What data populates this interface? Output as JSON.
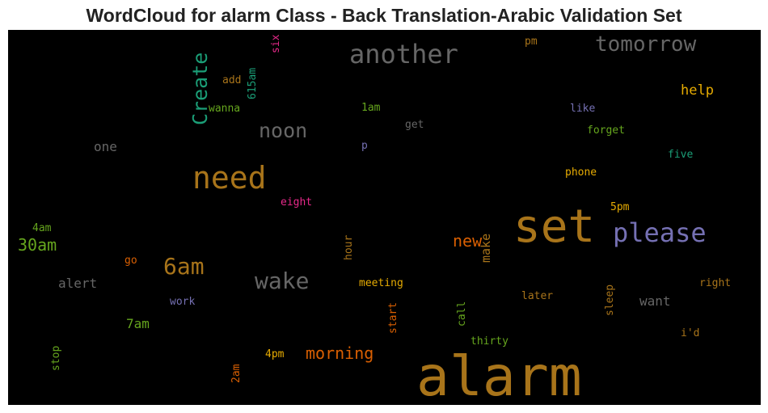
{
  "chart_data": {
    "type": "wordcloud",
    "title": "WordCloud for alarm Class - Back Translation-Arabic Validation Set",
    "background": "#000000",
    "words": [
      {
        "text": "alarm",
        "size": 68,
        "color": "#a8741a",
        "rotation": 0
      },
      {
        "text": "set",
        "size": 56,
        "color": "#a8741a",
        "rotation": 0
      },
      {
        "text": "need",
        "size": 38,
        "color": "#a8741a",
        "rotation": 0
      },
      {
        "text": "please",
        "size": 32,
        "color": "#7570b3",
        "rotation": 0
      },
      {
        "text": "another",
        "size": 32,
        "color": "#666666",
        "rotation": 0
      },
      {
        "text": "wake",
        "size": 28,
        "color": "#666666",
        "rotation": 0
      },
      {
        "text": "6am",
        "size": 28,
        "color": "#a8741a",
        "rotation": 0
      },
      {
        "text": "tomorrow",
        "size": 26,
        "color": "#666666",
        "rotation": 0
      },
      {
        "text": "Create",
        "size": 25,
        "color": "#1b9e77",
        "rotation": -90
      },
      {
        "text": "noon",
        "size": 25,
        "color": "#666666",
        "rotation": 0
      },
      {
        "text": "morning",
        "size": 20,
        "color": "#d95f02",
        "rotation": 0
      },
      {
        "text": "30am",
        "size": 20,
        "color": "#66a61e",
        "rotation": 0
      },
      {
        "text": "new",
        "size": 20,
        "color": "#d95f02",
        "rotation": 0
      },
      {
        "text": "help",
        "size": 17,
        "color": "#e6ab02",
        "rotation": 0
      },
      {
        "text": "want",
        "size": 16,
        "color": "#666666",
        "rotation": 0
      },
      {
        "text": "alert",
        "size": 16,
        "color": "#666666",
        "rotation": 0
      },
      {
        "text": "7am",
        "size": 16,
        "color": "#66a61e",
        "rotation": 0
      },
      {
        "text": "one",
        "size": 16,
        "color": "#666666",
        "rotation": 0
      },
      {
        "text": "make",
        "size": 15,
        "color": "#a8741a",
        "rotation": -90
      },
      {
        "text": "meeting",
        "size": 13,
        "color": "#e6ab02",
        "rotation": 0
      },
      {
        "text": "phone",
        "size": 13,
        "color": "#e6ab02",
        "rotation": 0
      },
      {
        "text": "5pm",
        "size": 13,
        "color": "#e6ab02",
        "rotation": 0
      },
      {
        "text": "4pm",
        "size": 13,
        "color": "#e6ab02",
        "rotation": 0
      },
      {
        "text": "later",
        "size": 13,
        "color": "#a8741a",
        "rotation": 0
      },
      {
        "text": "right",
        "size": 13,
        "color": "#a8741a",
        "rotation": 0
      },
      {
        "text": "i'd",
        "size": 13,
        "color": "#a8741a",
        "rotation": 0
      },
      {
        "text": "eight",
        "size": 13,
        "color": "#e7298a",
        "rotation": 0
      },
      {
        "text": "six",
        "size": 13,
        "color": "#e7298a",
        "rotation": -90
      },
      {
        "text": "forget",
        "size": 13,
        "color": "#66a61e",
        "rotation": 0
      },
      {
        "text": "five",
        "size": 13,
        "color": "#1b9e77",
        "rotation": 0
      },
      {
        "text": "like",
        "size": 13,
        "color": "#7570b3",
        "rotation": 0
      },
      {
        "text": "work",
        "size": 13,
        "color": "#7570b3",
        "rotation": 0
      },
      {
        "text": "p",
        "size": 13,
        "color": "#7570b3",
        "rotation": 0
      },
      {
        "text": "get",
        "size": 13,
        "color": "#666666",
        "rotation": 0
      },
      {
        "text": "1am",
        "size": 13,
        "color": "#66a61e",
        "rotation": 0
      },
      {
        "text": "wanna",
        "size": 13,
        "color": "#66a61e",
        "rotation": 0
      },
      {
        "text": "add",
        "size": 13,
        "color": "#a8741a",
        "rotation": 0
      },
      {
        "text": "615am",
        "size": 13,
        "color": "#1b9e77",
        "rotation": -90
      },
      {
        "text": "pm",
        "size": 13,
        "color": "#a8741a",
        "rotation": 0
      },
      {
        "text": "4am",
        "size": 13,
        "color": "#66a61e",
        "rotation": 0
      },
      {
        "text": "go",
        "size": 13,
        "color": "#d95f02",
        "rotation": 0
      },
      {
        "text": "hour",
        "size": 13,
        "color": "#a8741a",
        "rotation": -90
      },
      {
        "text": "start",
        "size": 13,
        "color": "#d95f02",
        "rotation": -90
      },
      {
        "text": "call",
        "size": 13,
        "color": "#66a61e",
        "rotation": -90
      },
      {
        "text": "thirty",
        "size": 13,
        "color": "#66a61e",
        "rotation": 0
      },
      {
        "text": "sleep",
        "size": 13,
        "color": "#a8741a",
        "rotation": -90
      },
      {
        "text": "stop",
        "size": 13,
        "color": "#66a61e",
        "rotation": -90
      },
      {
        "text": "2am",
        "size": 13,
        "color": "#d95f02",
        "rotation": -90
      }
    ]
  }
}
